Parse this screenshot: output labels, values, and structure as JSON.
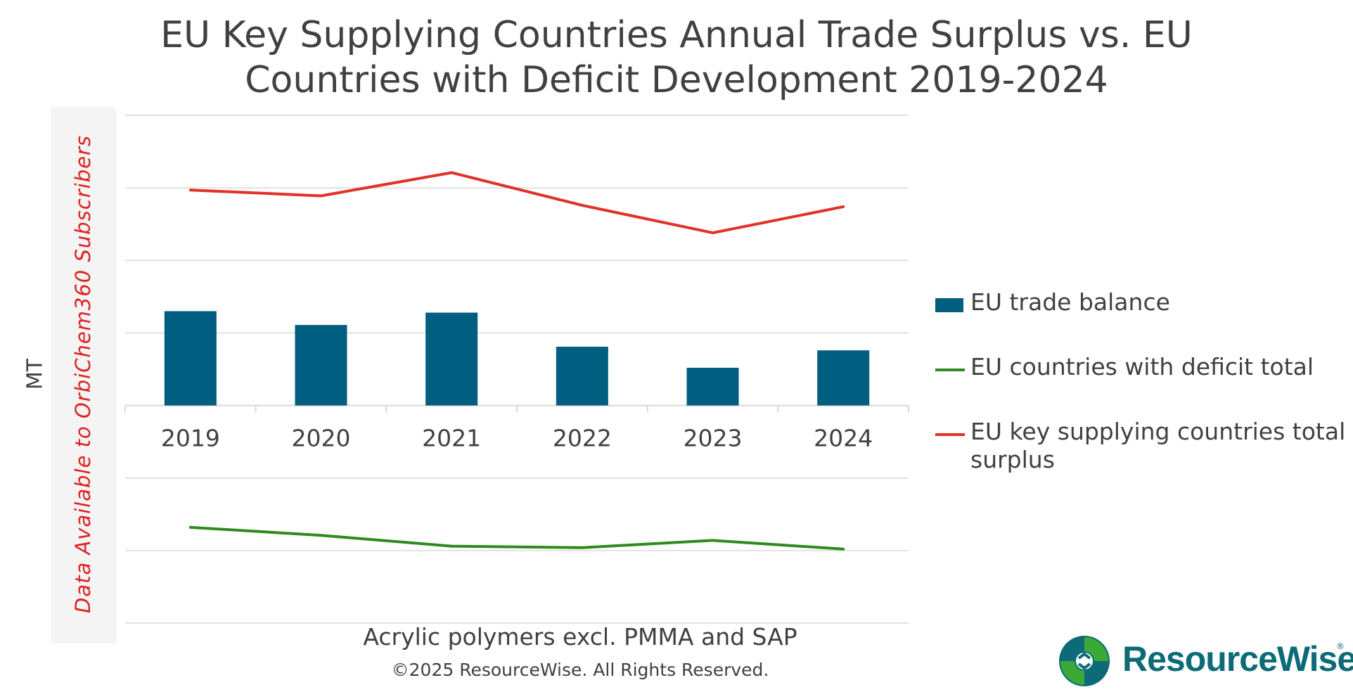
{
  "title_line1": "EU Key Supplying Countries Annual Trade Surplus vs. EU",
  "title_line2": "Countries with Deficit Development 2019-2024",
  "watermark": "Data Available to OrbiChem360 Subscribers",
  "subtitle": "Acrylic polymers excl. PMMA and SAP",
  "copyright": "©2025 ResourceWise. All Rights Reserved.",
  "logo_text": "ResourceWise",
  "logo_mark": "®",
  "colors": {
    "bar": "#005e80",
    "green": "#2e8b1e",
    "red": "#e03228",
    "grid": "#d9d9d9"
  },
  "chart_data": {
    "type": "bar",
    "ylabel": "MT",
    "ylim": [
      -3,
      4
    ],
    "grid": true,
    "y_tick_labels_shown": false,
    "legend_position": "right",
    "categories": [
      "2019",
      "2020",
      "2021",
      "2022",
      "2023",
      "2024"
    ],
    "series": [
      {
        "name": "EU trade balance",
        "kind": "bar",
        "color": "#005e80",
        "values": [
          1.3,
          1.11,
          1.28,
          0.81,
          0.52,
          0.76
        ]
      },
      {
        "name": "EU countries with deficit total",
        "kind": "line",
        "color": "#2e8b1e",
        "values": [
          -1.68,
          -1.79,
          -1.94,
          -1.96,
          -1.86,
          -1.98
        ]
      },
      {
        "name": "EU key supplying countries total surplus",
        "kind": "line",
        "color": "#e03228",
        "values": [
          2.97,
          2.89,
          3.21,
          2.76,
          2.38,
          2.74
        ]
      }
    ]
  },
  "legend": {
    "bar_label": "EU trade balance",
    "green_label": "EU countries with deficit total",
    "red_label": "EU key supplying countries total surplus"
  }
}
